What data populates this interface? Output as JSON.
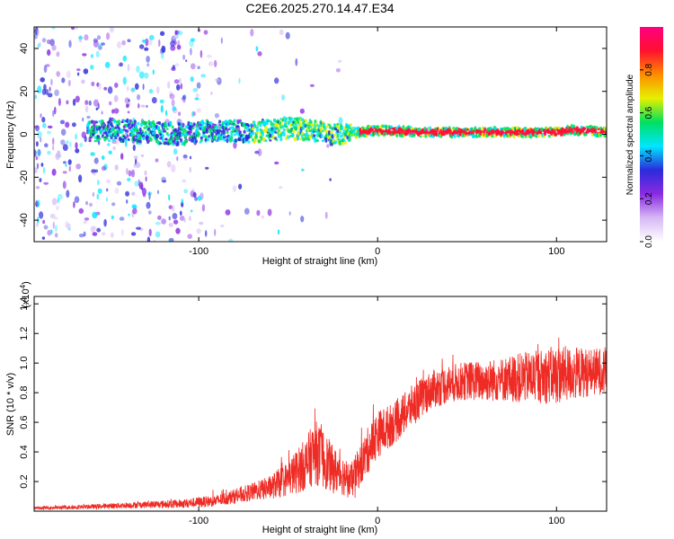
{
  "title": "C2E6.2025.270.14.47.E34",
  "colors": {
    "snr_line": "#ee2b24",
    "spectrogram_base": "#9d7ff0"
  },
  "chart_data": [
    {
      "type": "heatmap",
      "name": "spectrogram",
      "xlabel": "Height of straight line (km)",
      "ylabel": "Frequency (Hz)",
      "xlim": [
        -192,
        128
      ],
      "ylim": [
        -50,
        50
      ],
      "x_ticks": [
        -100,
        0,
        100
      ],
      "y_ticks": [
        -40,
        -20,
        0,
        20,
        40
      ],
      "colorbar": {
        "label": "Normalized spectral amplitude",
        "range": [
          0.0,
          1.0
        ],
        "ticks": [
          0.0,
          0.2,
          0.4,
          0.6,
          0.8
        ],
        "tick_labels": [
          "0.0",
          "0.2",
          "0.4",
          "0.6",
          "0.8"
        ],
        "colors": [
          "#ffffff",
          "#d6b8f5",
          "#8a2be2",
          "#2b2bdb",
          "#00e5ff",
          "#00e060",
          "#e6f000",
          "#ff8c00",
          "#ff1030",
          "#ff0080"
        ]
      },
      "trace": {
        "x": [
          -192,
          -170,
          -150,
          -130,
          -110,
          -90,
          -70,
          -50,
          -40,
          -30,
          -20,
          -10,
          0,
          20,
          40,
          60,
          80,
          100,
          110,
          128
        ],
        "center_hz": [
          0,
          1,
          2,
          1,
          0,
          2,
          1,
          3,
          2,
          1,
          0,
          1,
          2,
          1,
          1,
          1,
          1,
          1,
          2,
          1
        ]
      }
    },
    {
      "type": "line",
      "name": "snr",
      "xlabel": "Height of straight line (km)",
      "ylabel": "SNR (10 * v/v)",
      "multiplier": "(x10",
      "multiplier_exp": "4",
      "multiplier_close": ")",
      "xlim": [
        -192,
        128
      ],
      "ylim": [
        0,
        1.45
      ],
      "x_ticks": [
        -100,
        0,
        100
      ],
      "y_ticks": [
        0.2,
        0.4,
        0.6,
        0.8,
        1.0,
        1.2,
        1.4
      ],
      "y_tick_labels": [
        "0.2",
        "0.4",
        "0.6",
        "0.8",
        "1.0",
        "1.2",
        "1.4"
      ],
      "x_tick_labels": [
        "-100",
        "0",
        "100"
      ],
      "envelope": {
        "x": [
          -192,
          -160,
          -140,
          -110,
          -90,
          -80,
          -70,
          -60,
          -50,
          -40,
          -35,
          -30,
          -25,
          -20,
          -15,
          -10,
          -5,
          0,
          10,
          20,
          30,
          40,
          50,
          60,
          70,
          80,
          90,
          100,
          110,
          120,
          128
        ],
        "mean": [
          0.02,
          0.03,
          0.04,
          0.05,
          0.07,
          0.1,
          0.13,
          0.16,
          0.22,
          0.32,
          0.4,
          0.35,
          0.28,
          0.25,
          0.2,
          0.3,
          0.42,
          0.52,
          0.6,
          0.72,
          0.82,
          0.86,
          0.88,
          0.88,
          0.89,
          0.9,
          0.91,
          0.92,
          0.93,
          0.94,
          0.95
        ],
        "spread": [
          0.01,
          0.015,
          0.02,
          0.03,
          0.04,
          0.05,
          0.06,
          0.08,
          0.12,
          0.18,
          0.22,
          0.2,
          0.16,
          0.14,
          0.12,
          0.14,
          0.16,
          0.16,
          0.14,
          0.14,
          0.13,
          0.13,
          0.13,
          0.14,
          0.15,
          0.17,
          0.18,
          0.2,
          0.18,
          0.16,
          0.16
        ]
      }
    }
  ]
}
